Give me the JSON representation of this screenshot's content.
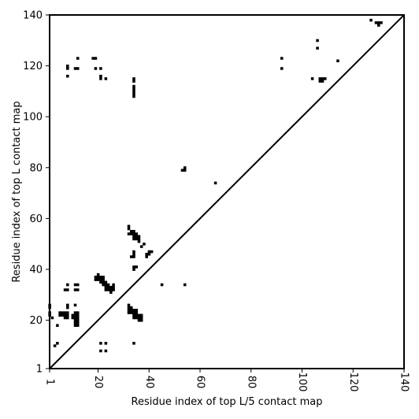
{
  "chart_data": {
    "type": "heatmap",
    "xlabel": "Residue index of top L/5 contact map",
    "ylabel": "Residue index of top L contact map",
    "xlim": [
      1,
      140
    ],
    "ylim": [
      1,
      140
    ],
    "x_ticks": [
      {
        "value": 1,
        "label": "1"
      },
      {
        "value": 20,
        "label": "20"
      },
      {
        "value": 40,
        "label": "40"
      },
      {
        "value": 60,
        "label": "60"
      },
      {
        "value": 80,
        "label": "80"
      },
      {
        "value": 100,
        "label": "100"
      },
      {
        "value": 120,
        "label": "120"
      },
      {
        "value": 140,
        "label": "140"
      }
    ],
    "y_ticks": [
      {
        "value": 1,
        "label": "1"
      },
      {
        "value": 20,
        "label": "20"
      },
      {
        "value": 40,
        "label": "40"
      },
      {
        "value": 60,
        "label": "60"
      },
      {
        "value": 80,
        "label": "80"
      },
      {
        "value": 100,
        "label": "100"
      },
      {
        "value": 120,
        "label": "120"
      },
      {
        "value": 140,
        "label": "140"
      }
    ],
    "diagonal": true,
    "grid": false,
    "cell_color": "#000000",
    "upper_contacts": [
      [
        8,
        120
      ],
      [
        8,
        119
      ],
      [
        8,
        116
      ],
      [
        11,
        119
      ],
      [
        12,
        119
      ],
      [
        12,
        123
      ],
      [
        18,
        123
      ],
      [
        19,
        123
      ],
      [
        19,
        119
      ],
      [
        21,
        119
      ],
      [
        21,
        116
      ],
      [
        21,
        115
      ],
      [
        23,
        115
      ],
      [
        34,
        115
      ],
      [
        34,
        114
      ],
      [
        34,
        112
      ],
      [
        34,
        111
      ],
      [
        34,
        110
      ],
      [
        34,
        109
      ],
      [
        34,
        108
      ],
      [
        92,
        123
      ],
      [
        92,
        119
      ],
      [
        104,
        115
      ],
      [
        106,
        130
      ],
      [
        106,
        127
      ],
      [
        107,
        115
      ],
      [
        107,
        114
      ],
      [
        108,
        115
      ],
      [
        108,
        114
      ],
      [
        109,
        115
      ],
      [
        114,
        122
      ],
      [
        127,
        138
      ],
      [
        129,
        137
      ],
      [
        130,
        137
      ],
      [
        130,
        136
      ],
      [
        131,
        137
      ],
      [
        53,
        79
      ],
      [
        54,
        79
      ],
      [
        54,
        80
      ],
      [
        66,
        74
      ]
    ],
    "lower_contacts": [
      [
        1,
        26
      ],
      [
        1,
        25
      ],
      [
        1,
        23
      ],
      [
        1,
        22
      ],
      [
        2,
        21
      ],
      [
        3,
        10
      ],
      [
        4,
        11
      ],
      [
        4,
        18
      ],
      [
        5,
        23
      ],
      [
        5,
        22
      ],
      [
        6,
        23
      ],
      [
        6,
        22
      ],
      [
        7,
        23
      ],
      [
        7,
        22
      ],
      [
        7,
        21
      ],
      [
        7,
        32
      ],
      [
        8,
        34
      ],
      [
        8,
        32
      ],
      [
        8,
        26
      ],
      [
        8,
        25
      ],
      [
        8,
        23
      ],
      [
        8,
        22
      ],
      [
        8,
        21
      ],
      [
        10,
        22
      ],
      [
        10,
        21
      ],
      [
        11,
        34
      ],
      [
        11,
        32
      ],
      [
        11,
        26
      ],
      [
        11,
        23
      ],
      [
        11,
        22
      ],
      [
        11,
        21
      ],
      [
        11,
        20
      ],
      [
        11,
        19
      ],
      [
        11,
        18
      ],
      [
        12,
        34
      ],
      [
        12,
        32
      ],
      [
        12,
        23
      ],
      [
        12,
        22
      ],
      [
        12,
        21
      ],
      [
        12,
        20
      ],
      [
        12,
        19
      ],
      [
        12,
        18
      ],
      [
        19,
        37
      ],
      [
        19,
        36
      ],
      [
        20,
        38
      ],
      [
        20,
        37
      ],
      [
        20,
        36
      ],
      [
        21,
        37
      ],
      [
        21,
        36
      ],
      [
        21,
        35
      ],
      [
        21,
        11
      ],
      [
        21,
        8
      ],
      [
        22,
        37
      ],
      [
        22,
        36
      ],
      [
        22,
        35
      ],
      [
        22,
        34
      ],
      [
        23,
        35
      ],
      [
        23,
        34
      ],
      [
        23,
        33
      ],
      [
        23,
        32
      ],
      [
        23,
        11
      ],
      [
        23,
        8
      ],
      [
        24,
        34
      ],
      [
        24,
        33
      ],
      [
        24,
        32
      ],
      [
        25,
        33
      ],
      [
        25,
        32
      ],
      [
        25,
        31
      ],
      [
        26,
        34
      ],
      [
        26,
        33
      ],
      [
        26,
        32
      ],
      [
        32,
        57
      ],
      [
        32,
        56
      ],
      [
        32,
        54
      ],
      [
        32,
        26
      ],
      [
        32,
        25
      ],
      [
        32,
        24
      ],
      [
        32,
        23
      ],
      [
        33,
        55
      ],
      [
        33,
        54
      ],
      [
        33,
        45
      ],
      [
        33,
        25
      ],
      [
        33,
        24
      ],
      [
        33,
        23
      ],
      [
        34,
        55
      ],
      [
        34,
        54
      ],
      [
        34,
        53
      ],
      [
        34,
        52
      ],
      [
        34,
        47
      ],
      [
        34,
        46
      ],
      [
        34,
        45
      ],
      [
        34,
        41
      ],
      [
        34,
        40
      ],
      [
        34,
        24
      ],
      [
        34,
        23
      ],
      [
        34,
        22
      ],
      [
        34,
        21
      ],
      [
        34,
        11
      ],
      [
        35,
        54
      ],
      [
        35,
        53
      ],
      [
        35,
        52
      ],
      [
        35,
        41
      ],
      [
        35,
        24
      ],
      [
        35,
        23
      ],
      [
        35,
        22
      ],
      [
        35,
        21
      ],
      [
        36,
        53
      ],
      [
        36,
        52
      ],
      [
        36,
        51
      ],
      [
        36,
        22
      ],
      [
        36,
        21
      ],
      [
        36,
        20
      ],
      [
        37,
        49
      ],
      [
        37,
        22
      ],
      [
        37,
        21
      ],
      [
        37,
        20
      ],
      [
        38,
        50
      ],
      [
        39,
        46
      ],
      [
        39,
        45
      ],
      [
        40,
        47
      ],
      [
        40,
        46
      ],
      [
        41,
        47
      ],
      [
        45,
        34
      ],
      [
        54,
        34
      ]
    ]
  }
}
